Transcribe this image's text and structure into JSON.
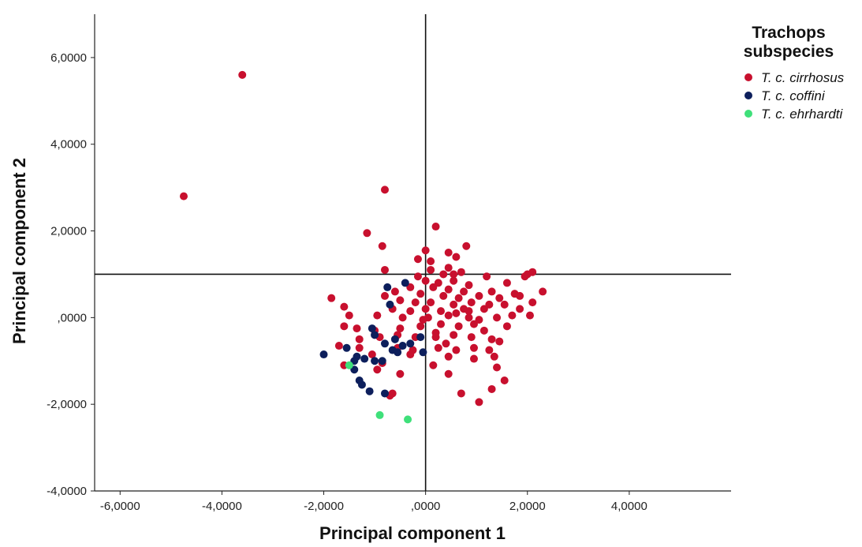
{
  "chart_data": {
    "type": "scatter",
    "title": "",
    "xlabel": "Principal component 1",
    "ylabel": "Principal component 2",
    "xlim": [
      -6.5,
      6.0
    ],
    "ylim": [
      -4.0,
      7.0
    ],
    "x_ticks": [
      -6,
      -4,
      -2,
      0,
      2,
      4
    ],
    "x_tick_labels": [
      "-6,0000",
      "-4,0000",
      "-2,0000",
      ",0000",
      "2,0000",
      "4,0000"
    ],
    "y_ticks": [
      -4,
      -2,
      0,
      2,
      4,
      6
    ],
    "y_tick_labels": [
      "-4,0000",
      "-2,0000",
      ",0000",
      "2,0000",
      "4,0000",
      "6,0000"
    ],
    "reference_lines": {
      "x": 0,
      "y": 1.0
    },
    "grid": false,
    "legend": {
      "title_lines": [
        "Trachops",
        "subspecies"
      ],
      "position": "top-right",
      "entries": [
        "T. c. cirrhosus",
        "T. c. coffini",
        "T. c. ehrhardti"
      ]
    },
    "series": [
      {
        "name": "T. c. cirrhosus",
        "color": "#c8102e",
        "points": [
          [
            -3.6,
            5.6
          ],
          [
            -4.75,
            2.8
          ],
          [
            -0.8,
            2.95
          ],
          [
            -1.15,
            1.95
          ],
          [
            0.2,
            2.1
          ],
          [
            -0.85,
            1.65
          ],
          [
            0.8,
            1.65
          ],
          [
            0.0,
            1.55
          ],
          [
            0.45,
            1.5
          ],
          [
            0.6,
            1.4
          ],
          [
            -0.15,
            1.35
          ],
          [
            0.1,
            1.3
          ],
          [
            -0.8,
            1.1
          ],
          [
            0.45,
            1.15
          ],
          [
            0.1,
            1.1
          ],
          [
            0.35,
            1.0
          ],
          [
            0.55,
            1.0
          ],
          [
            0.7,
            1.05
          ],
          [
            -0.15,
            0.95
          ],
          [
            1.2,
            0.95
          ],
          [
            2.1,
            1.05
          ],
          [
            2.0,
            1.0
          ],
          [
            1.95,
            0.95
          ],
          [
            0.0,
            0.85
          ],
          [
            0.25,
            0.8
          ],
          [
            0.55,
            0.85
          ],
          [
            0.85,
            0.75
          ],
          [
            1.6,
            0.8
          ],
          [
            -0.3,
            0.7
          ],
          [
            0.15,
            0.7
          ],
          [
            0.45,
            0.65
          ],
          [
            0.75,
            0.6
          ],
          [
            1.3,
            0.6
          ],
          [
            1.75,
            0.55
          ],
          [
            2.3,
            0.6
          ],
          [
            -0.6,
            0.6
          ],
          [
            -0.1,
            0.55
          ],
          [
            0.35,
            0.5
          ],
          [
            0.65,
            0.45
          ],
          [
            1.05,
            0.5
          ],
          [
            1.45,
            0.45
          ],
          [
            1.85,
            0.5
          ],
          [
            -1.85,
            0.45
          ],
          [
            -0.8,
            0.5
          ],
          [
            -0.5,
            0.4
          ],
          [
            -0.2,
            0.35
          ],
          [
            0.1,
            0.35
          ],
          [
            0.55,
            0.3
          ],
          [
            0.9,
            0.35
          ],
          [
            1.25,
            0.3
          ],
          [
            1.55,
            0.3
          ],
          [
            2.1,
            0.35
          ],
          [
            -1.6,
            0.25
          ],
          [
            -0.65,
            0.2
          ],
          [
            -0.3,
            0.15
          ],
          [
            0.0,
            0.2
          ],
          [
            0.3,
            0.15
          ],
          [
            0.75,
            0.2
          ],
          [
            1.15,
            0.2
          ],
          [
            1.85,
            0.2
          ],
          [
            -1.5,
            0.05
          ],
          [
            -0.95,
            0.05
          ],
          [
            -0.45,
            0.0
          ],
          [
            0.05,
            0.0
          ],
          [
            0.45,
            0.05
          ],
          [
            0.85,
            0.0
          ],
          [
            1.05,
            -0.05
          ],
          [
            1.4,
            0.0
          ],
          [
            1.7,
            0.05
          ],
          [
            2.05,
            0.05
          ],
          [
            -1.6,
            -0.2
          ],
          [
            -1.35,
            -0.25
          ],
          [
            -1.0,
            -0.3
          ],
          [
            -0.5,
            -0.25
          ],
          [
            -0.1,
            -0.2
          ],
          [
            0.3,
            -0.15
          ],
          [
            0.65,
            -0.2
          ],
          [
            0.95,
            -0.15
          ],
          [
            1.15,
            -0.3
          ],
          [
            1.6,
            -0.2
          ],
          [
            -1.3,
            -0.5
          ],
          [
            -0.9,
            -0.45
          ],
          [
            -0.55,
            -0.4
          ],
          [
            -0.2,
            -0.45
          ],
          [
            0.2,
            -0.45
          ],
          [
            0.55,
            -0.4
          ],
          [
            0.9,
            -0.45
          ],
          [
            1.3,
            -0.5
          ],
          [
            1.45,
            -0.55
          ],
          [
            -1.3,
            -0.7
          ],
          [
            -1.7,
            -0.65
          ],
          [
            -0.55,
            -0.7
          ],
          [
            -0.25,
            -0.75
          ],
          [
            0.25,
            -0.7
          ],
          [
            0.6,
            -0.75
          ],
          [
            0.95,
            -0.7
          ],
          [
            1.25,
            -0.75
          ],
          [
            -1.05,
            -0.85
          ],
          [
            -0.3,
            -0.85
          ],
          [
            0.45,
            -0.9
          ],
          [
            0.95,
            -0.95
          ],
          [
            1.35,
            -0.9
          ],
          [
            -0.85,
            -1.05
          ],
          [
            0.15,
            -1.1
          ],
          [
            1.4,
            -1.15
          ],
          [
            -1.6,
            -1.1
          ],
          [
            -0.95,
            -1.2
          ],
          [
            -0.5,
            -1.3
          ],
          [
            0.45,
            -1.3
          ],
          [
            1.55,
            -1.45
          ],
          [
            -0.65,
            -1.75
          ],
          [
            0.7,
            -1.75
          ],
          [
            1.3,
            -1.65
          ],
          [
            1.05,
            -1.95
          ],
          [
            -0.7,
            -1.8
          ],
          [
            0.6,
            0.1
          ],
          [
            0.85,
            0.15
          ],
          [
            -0.05,
            -0.05
          ],
          [
            0.2,
            -0.35
          ],
          [
            0.4,
            -0.6
          ]
        ]
      },
      {
        "name": "T. c. coffini",
        "color": "#0d1f5c",
        "points": [
          [
            -0.4,
            0.8
          ],
          [
            -0.75,
            0.7
          ],
          [
            -0.7,
            0.3
          ],
          [
            -1.05,
            -0.25
          ],
          [
            -1.0,
            -0.4
          ],
          [
            -0.6,
            -0.5
          ],
          [
            -0.1,
            -0.45
          ],
          [
            -0.8,
            -0.6
          ],
          [
            -0.45,
            -0.65
          ],
          [
            -1.55,
            -0.7
          ],
          [
            -1.35,
            -0.9
          ],
          [
            -0.65,
            -0.75
          ],
          [
            -0.55,
            -0.8
          ],
          [
            -0.05,
            -0.8
          ],
          [
            -2.0,
            -0.85
          ],
          [
            -1.2,
            -0.95
          ],
          [
            -1.0,
            -1.0
          ],
          [
            -1.4,
            -1.0
          ],
          [
            -0.85,
            -1.0
          ],
          [
            -1.4,
            -1.2
          ],
          [
            -1.3,
            -1.45
          ],
          [
            -1.25,
            -1.55
          ],
          [
            -1.1,
            -1.7
          ],
          [
            -0.8,
            -1.75
          ],
          [
            -0.3,
            -0.6
          ]
        ]
      },
      {
        "name": "T. c. ehrhardti",
        "color": "#3fe07a",
        "points": [
          [
            -1.5,
            -1.1
          ],
          [
            -0.9,
            -2.25
          ],
          [
            -0.35,
            -2.35
          ]
        ]
      }
    ]
  }
}
